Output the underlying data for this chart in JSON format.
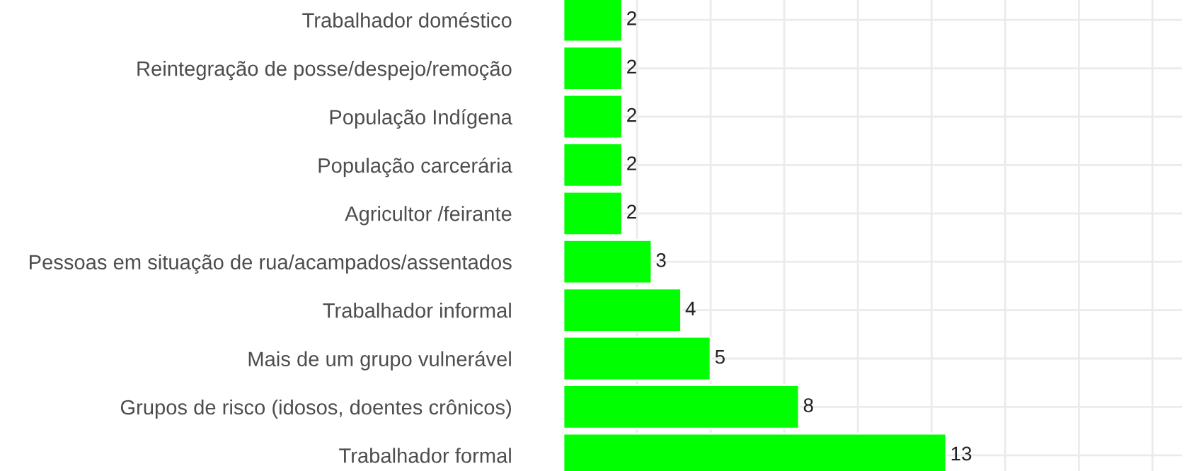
{
  "chart_data": {
    "type": "bar",
    "orientation": "horizontal",
    "categories": [
      "Trabalhador doméstico",
      "Reintegração de posse/despejo/remoção",
      "População Indígena",
      "População carcerária",
      "Agricultor /feirante",
      "Pessoas em situação de rua/acampados/assentados",
      "Trabalhador informal",
      "Mais de um grupo vulnerável",
      "Grupos de risco (idosos, doentes crônicos)",
      "Trabalhador formal"
    ],
    "values": [
      2,
      2,
      2,
      2,
      2,
      3,
      4,
      5,
      8,
      13
    ],
    "color": "#00ff00",
    "xlim": [
      0,
      21
    ],
    "xticks": [
      {
        "value": 2.5,
        "label": null
      },
      {
        "value": 5,
        "label": null
      },
      {
        "value": 7.5,
        "label": null
      },
      {
        "value": 10,
        "label": null
      },
      {
        "value": 12.5,
        "label": null
      },
      {
        "value": 15,
        "label": null
      },
      {
        "value": 17.5,
        "label": null
      },
      {
        "value": 20,
        "label": null
      }
    ],
    "tick_labels": "y",
    "grid": true,
    "data_labels": true
  }
}
